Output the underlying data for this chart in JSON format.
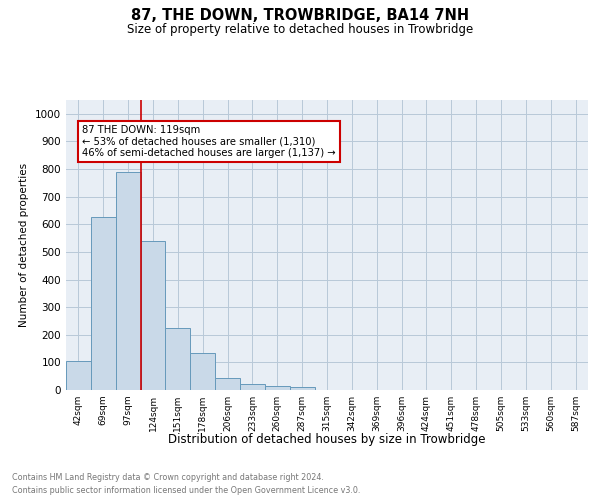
{
  "title": "87, THE DOWN, TROWBRIDGE, BA14 7NH",
  "subtitle": "Size of property relative to detached houses in Trowbridge",
  "xlabel": "Distribution of detached houses by size in Trowbridge",
  "ylabel": "Number of detached properties",
  "bar_values": [
    105,
    625,
    790,
    540,
    225,
    135,
    45,
    20,
    15,
    10,
    0,
    0,
    0,
    0,
    0,
    0,
    0,
    0,
    0,
    0,
    0
  ],
  "categories": [
    "42sqm",
    "69sqm",
    "97sqm",
    "124sqm",
    "151sqm",
    "178sqm",
    "206sqm",
    "233sqm",
    "260sqm",
    "287sqm",
    "315sqm",
    "342sqm",
    "369sqm",
    "396sqm",
    "424sqm",
    "451sqm",
    "478sqm",
    "505sqm",
    "533sqm",
    "560sqm",
    "587sqm"
  ],
  "bar_color": "#c9d9e8",
  "bar_edge_color": "#6699bb",
  "grid_color": "#b8c8d8",
  "vline_x": 2.5,
  "vline_color": "#cc0000",
  "annotation_text": "87 THE DOWN: 119sqm\n← 53% of detached houses are smaller (1,310)\n46% of semi-detached houses are larger (1,137) →",
  "annotation_box_color": "#ffffff",
  "annotation_box_edge": "#cc0000",
  "ylim": [
    0,
    1050
  ],
  "yticks": [
    0,
    100,
    200,
    300,
    400,
    500,
    600,
    700,
    800,
    900,
    1000
  ],
  "footer_line1": "Contains HM Land Registry data © Crown copyright and database right 2024.",
  "footer_line2": "Contains public sector information licensed under the Open Government Licence v3.0.",
  "background_color": "#e8eef5"
}
